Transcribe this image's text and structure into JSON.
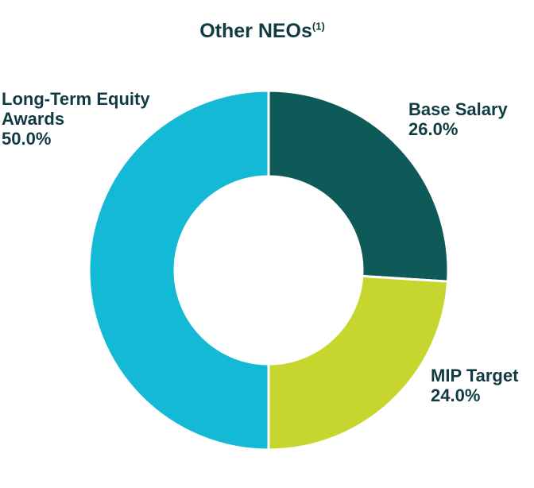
{
  "title": {
    "text": "Other NEOs",
    "superscript": "(1)"
  },
  "colors": {
    "text": "#113B42",
    "background": "#ffffff",
    "separator": "#ffffff"
  },
  "chart_data": {
    "type": "pie",
    "subtype": "donut",
    "title": "Other NEOs(1)",
    "legend": "none",
    "data_labels": "outside",
    "direction": "clockwise",
    "start_angle_deg": 0,
    "donut_hole_ratio": 0.52,
    "slices": [
      {
        "label": "Base Salary",
        "value": 26.0,
        "display": "26.0%",
        "color": "#0D5A59"
      },
      {
        "label": "MIP Target",
        "value": 24.0,
        "display": "24.0%",
        "color": "#C6D62E"
      },
      {
        "label": "Long-Term Equity Awards",
        "value": 50.0,
        "display": "50.0%",
        "color": "#14B9D5"
      }
    ]
  }
}
